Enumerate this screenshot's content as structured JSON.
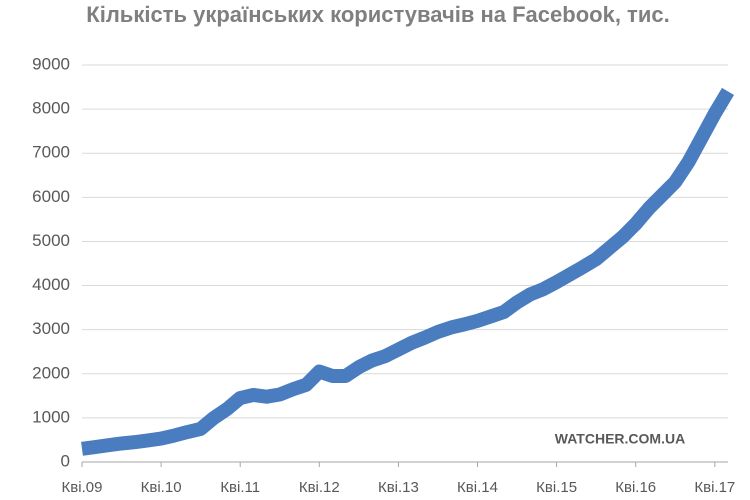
{
  "chart_data": {
    "type": "line",
    "title": "Кількість українських користувачів на Facebook, тис.",
    "annotation": "WATCHER.COM.UA",
    "categories": [
      "Кві.09",
      null,
      null,
      null,
      null,
      null,
      "Кві.10",
      null,
      null,
      null,
      null,
      null,
      "Кві.11",
      null,
      null,
      null,
      null,
      null,
      "Кві.12",
      null,
      null,
      null,
      null,
      null,
      "Кві.13",
      null,
      null,
      null,
      null,
      null,
      "Кві.14",
      null,
      null,
      null,
      null,
      null,
      "Кві.15",
      null,
      null,
      null,
      null,
      null,
      "Кві.16",
      null,
      null,
      null,
      null,
      null,
      "Кві.17",
      null
    ],
    "series": [
      {
        "color": "#4a7cc0",
        "values": [
          300,
          340,
          380,
          420,
          450,
          490,
          530,
          600,
          680,
          750,
          1000,
          1200,
          1450,
          1520,
          1480,
          1530,
          1650,
          1750,
          2050,
          1950,
          1950,
          2150,
          2300,
          2400,
          2550,
          2700,
          2820,
          2950,
          3050,
          3120,
          3200,
          3300,
          3400,
          3620,
          3800,
          3920,
          4080,
          4250,
          4420,
          4600,
          4850,
          5100,
          5400,
          5750,
          6050,
          6350,
          6800,
          7350,
          7900,
          8400
        ]
      }
    ],
    "ylim": [
      0,
      9000
    ],
    "yticks": [
      0,
      1000,
      2000,
      3000,
      4000,
      5000,
      6000,
      7000,
      8000,
      9000
    ],
    "grid": true
  }
}
